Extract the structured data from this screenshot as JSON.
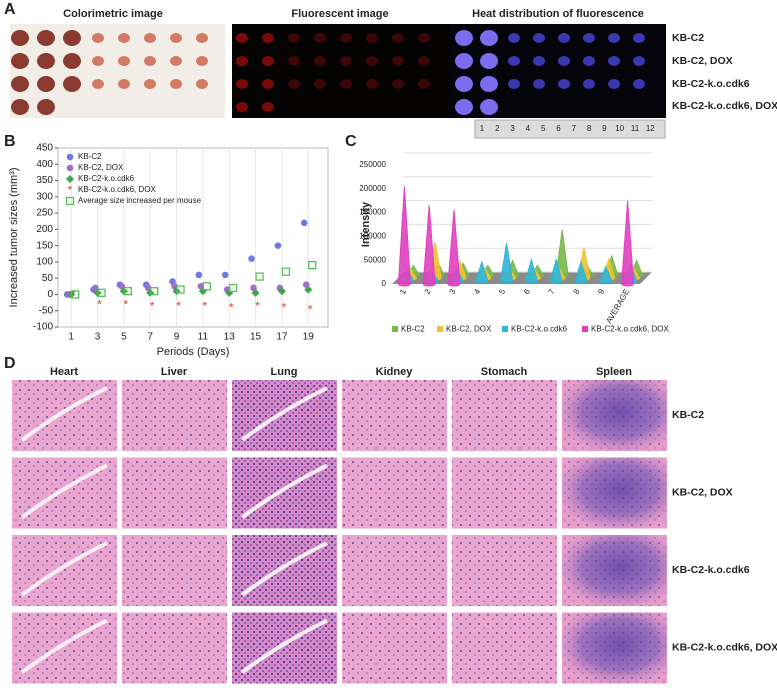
{
  "panels": {
    "a": "A",
    "b": "B",
    "c": "C",
    "d": "D"
  },
  "imaging": {
    "columns": [
      "Colorimetric image",
      "Fluorescent image",
      "Heat distribution of fluorescence"
    ],
    "rows": [
      "KB-C2",
      "KB-C2, DOX",
      "KB-C2-k.o.cdk6",
      "KB-C2-k.o.cdk6, DOX"
    ],
    "ruler": [
      "1",
      "2",
      "3",
      "4",
      "5",
      "6",
      "7",
      "8",
      "9",
      "10",
      "11",
      "12"
    ]
  },
  "chart_data": [
    {
      "type": "scatter",
      "x_label": "Periods (Days)",
      "y_label": "Increased tumor sizes (mm³)",
      "x": [
        1,
        3,
        5,
        7,
        9,
        11,
        13,
        15,
        17,
        19
      ],
      "series": [
        {
          "name": "KB-C2",
          "color": "#6b7be0",
          "marker": "circle",
          "values": [
            0,
            15,
            30,
            30,
            40,
            60,
            60,
            110,
            150,
            220
          ]
        },
        {
          "name": "KB-C2, DOX",
          "color": "#a56cc8",
          "marker": "circle",
          "values": [
            0,
            20,
            25,
            20,
            25,
            25,
            15,
            20,
            20,
            30
          ]
        },
        {
          "name": "KB-C2-k.o.cdk6",
          "color": "#3aa84a",
          "marker": "diamond",
          "values": [
            0,
            5,
            10,
            5,
            10,
            10,
            5,
            5,
            10,
            15
          ]
        },
        {
          "name": "KB-C2-k.o.cdk6, DOX",
          "color": "#e03a3a",
          "marker": "star",
          "values": [
            0,
            -30,
            -30,
            -35,
            -35,
            -35,
            -40,
            -35,
            -40,
            -45
          ]
        },
        {
          "name": "Average size increased per mouse",
          "color": "#55c155",
          "marker": "square",
          "values": [
            0,
            5,
            10,
            10,
            15,
            25,
            20,
            55,
            70,
            90
          ]
        }
      ],
      "xlim": [
        0,
        20.5
      ],
      "xticks": [
        1,
        3,
        5,
        7,
        9,
        11,
        13,
        15,
        17,
        19
      ],
      "ylim": [
        -100,
        450
      ],
      "yticks": [
        -100,
        -50,
        0,
        50,
        100,
        150,
        200,
        250,
        300,
        350,
        400,
        450
      ],
      "grid": "x",
      "legend": "top-left"
    },
    {
      "type": "cone",
      "y_label": "Intensity",
      "categories": [
        "1",
        "2",
        "3",
        "4",
        "5",
        "6",
        "7",
        "8",
        "9",
        "AVERAGE"
      ],
      "series": [
        {
          "name": "KB-C2",
          "color": "#78b84a",
          "values": [
            20000,
            25000,
            25000,
            20000,
            30000,
            20000,
            95000,
            20000,
            40000,
            30000
          ]
        },
        {
          "name": "KB-C2, DOX",
          "color": "#f2c230",
          "values": [
            20000,
            75000,
            35000,
            20000,
            20000,
            20000,
            20000,
            65000,
            40000,
            20000
          ]
        },
        {
          "name": "KB-C2-k.o.cdk6",
          "color": "#2fb6d8",
          "values": [
            25000,
            20000,
            25000,
            40000,
            80000,
            45000,
            45000,
            40000,
            30000,
            35000
          ]
        },
        {
          "name": "KB-C2-k.o.cdk6, DOX",
          "color": "#e040c0",
          "values": [
            205000,
            165000,
            155000,
            null,
            null,
            null,
            null,
            null,
            null,
            175000
          ]
        }
      ],
      "ylim": [
        0,
        250000
      ],
      "yticks": [
        0,
        50000,
        100000,
        150000,
        200000,
        250000
      ],
      "grid": true,
      "legend": "bottom"
    }
  ],
  "histology": {
    "columns": [
      "Heart",
      "Liver",
      "Lung",
      "Kidney",
      "Stomach",
      "Spleen"
    ],
    "rows": [
      "KB-C2",
      "KB-C2, DOX",
      "KB-C2-k.o.cdk6",
      "KB-C2-k.o.cdk6, DOX"
    ]
  }
}
